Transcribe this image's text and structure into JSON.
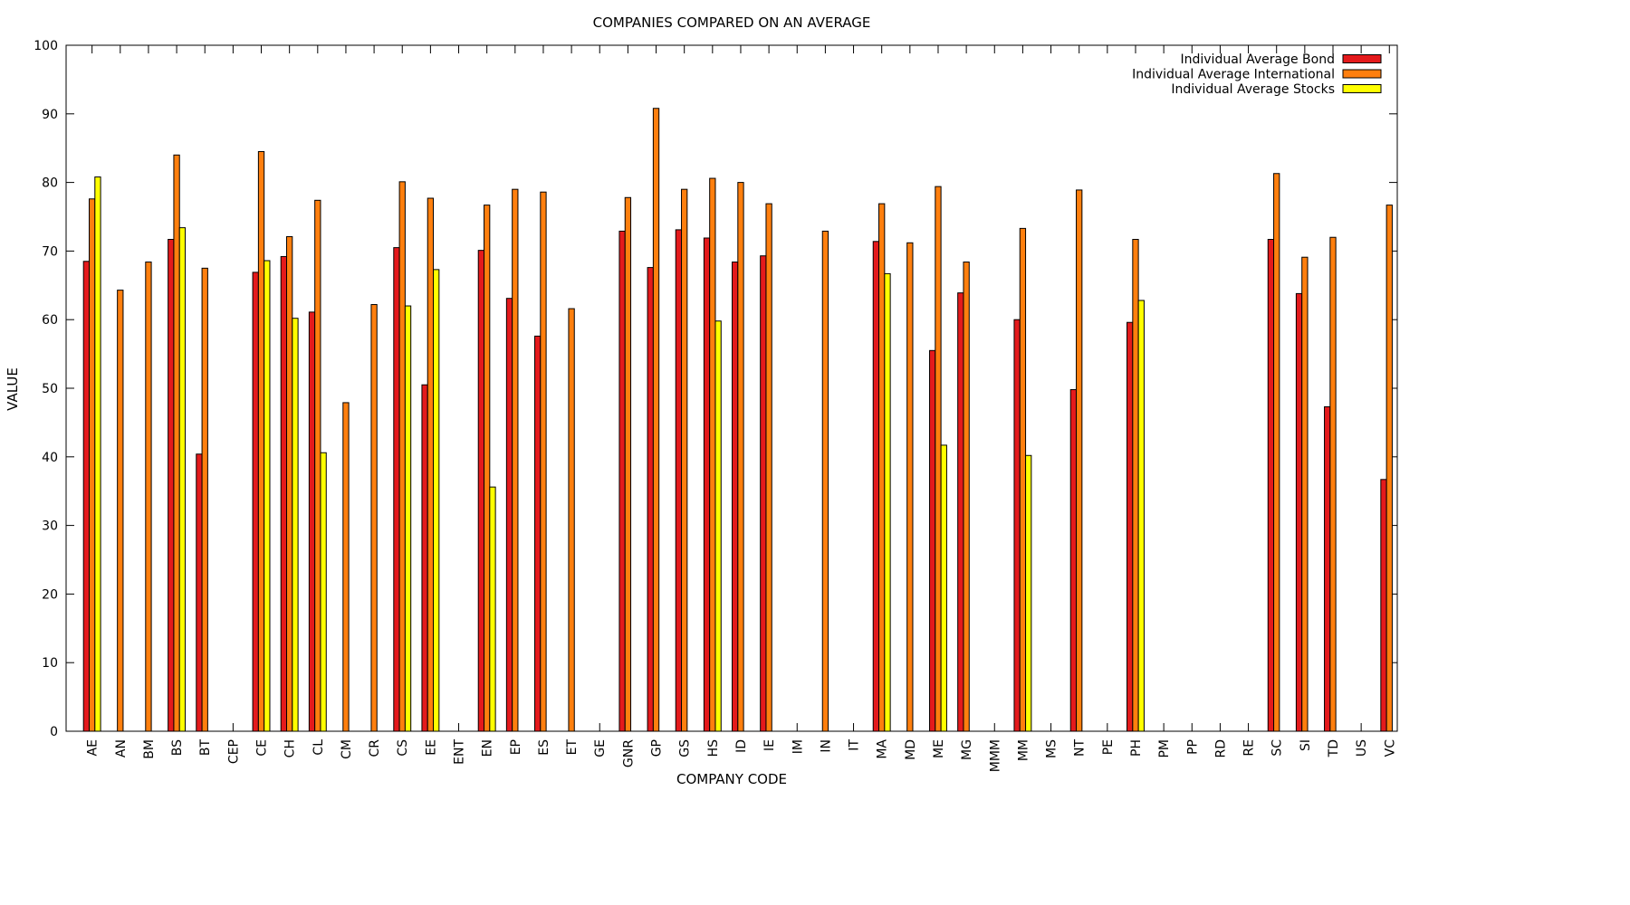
{
  "chart_data": {
    "type": "bar",
    "title": "COMPANIES COMPARED ON AN AVERAGE",
    "xlabel": "COMPANY CODE",
    "ylabel": "VALUE",
    "ylim": [
      0,
      100
    ],
    "yticks": [
      0,
      10,
      20,
      30,
      40,
      50,
      60,
      70,
      80,
      90,
      100
    ],
    "grid": false,
    "legend_position": "top-right",
    "categories": [
      "AE",
      "AN",
      "BM",
      "BS",
      "BT",
      "CEP",
      "CE",
      "CH",
      "CL",
      "CM",
      "CR",
      "CS",
      "EE",
      "ENT",
      "EN",
      "EP",
      "ES",
      "ET",
      "GE",
      "GNR",
      "GP",
      "GS",
      "HS",
      "ID",
      "IE",
      "IM",
      "IN",
      "IT",
      "MA",
      "MD",
      "ME",
      "MG",
      "MMM",
      "MM",
      "MS",
      "NT",
      "PE",
      "PH",
      "PM",
      "PP",
      "RD",
      "RE",
      "SC",
      "SI",
      "TD",
      "US",
      "VC"
    ],
    "series": [
      {
        "name": "Individual Average Bond",
        "color": "#e41a1c",
        "values": [
          68.5,
          null,
          null,
          71.7,
          40.4,
          null,
          66.9,
          69.2,
          61.1,
          null,
          null,
          70.5,
          50.5,
          null,
          70.1,
          63.1,
          57.6,
          null,
          null,
          72.9,
          67.6,
          73.1,
          71.9,
          68.4,
          69.3,
          null,
          null,
          null,
          71.4,
          null,
          55.5,
          63.9,
          null,
          60.0,
          null,
          49.8,
          null,
          59.6,
          null,
          null,
          null,
          null,
          71.7,
          63.8,
          47.3,
          null,
          36.7
        ]
      },
      {
        "name": "Individual Average International",
        "color": "#ff7f0e",
        "values": [
          77.6,
          64.3,
          68.4,
          84.0,
          67.5,
          null,
          84.5,
          72.1,
          77.4,
          47.9,
          62.2,
          80.1,
          77.7,
          null,
          76.7,
          79.0,
          78.6,
          61.6,
          null,
          77.8,
          90.8,
          79.0,
          80.6,
          80.0,
          76.9,
          null,
          72.9,
          null,
          76.9,
          71.2,
          79.4,
          68.4,
          null,
          73.3,
          null,
          78.9,
          null,
          71.7,
          null,
          null,
          null,
          null,
          81.3,
          69.1,
          72.0,
          null,
          76.7
        ]
      },
      {
        "name": "Individual Average Stocks",
        "color": "#ffff00",
        "values": [
          80.8,
          null,
          null,
          73.4,
          null,
          null,
          68.6,
          60.2,
          40.6,
          null,
          null,
          62.0,
          67.3,
          null,
          35.6,
          null,
          null,
          null,
          null,
          null,
          null,
          null,
          59.8,
          null,
          null,
          null,
          null,
          null,
          66.7,
          null,
          41.7,
          null,
          null,
          40.2,
          null,
          null,
          null,
          62.8,
          null,
          null,
          null,
          null,
          null,
          null,
          null,
          null,
          null
        ]
      }
    ]
  }
}
